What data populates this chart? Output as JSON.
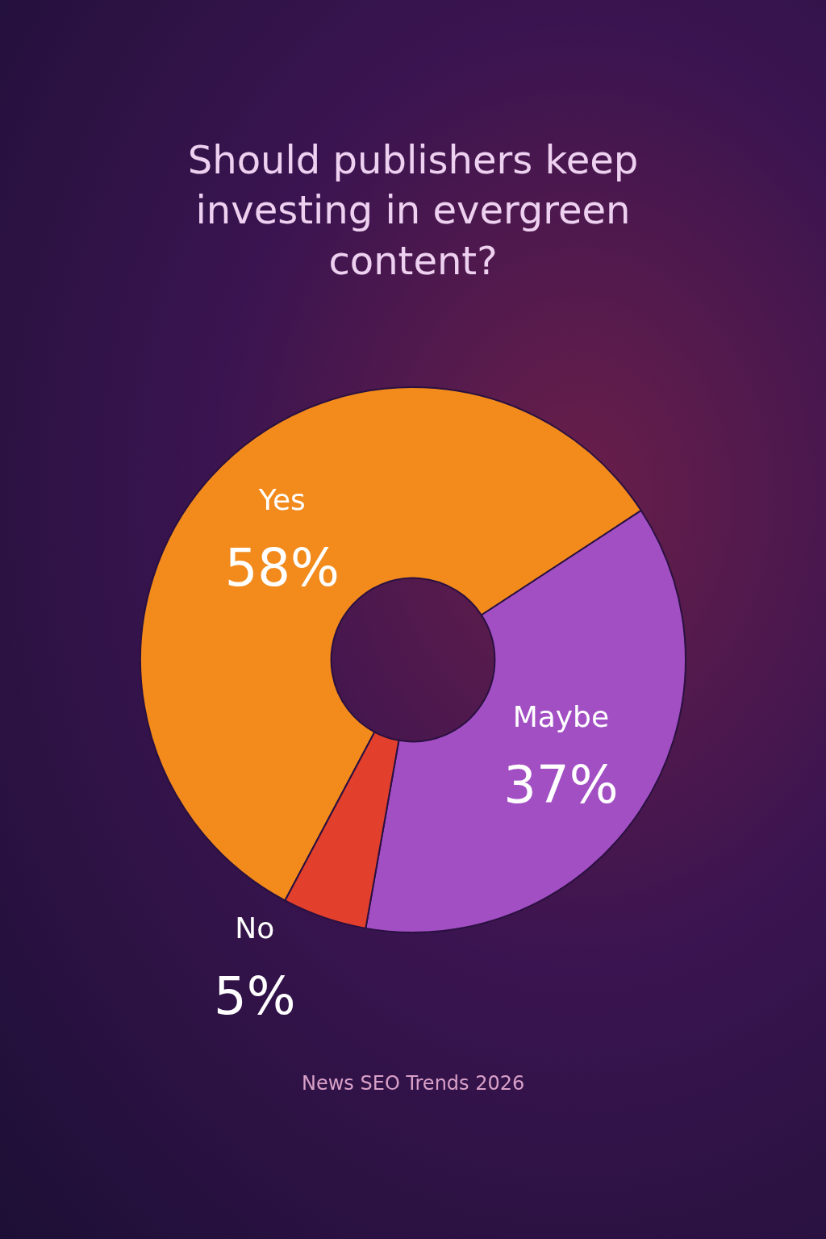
{
  "chart_data": {
    "type": "donut",
    "title": "Should publishers keep investing in evergreen content?",
    "categories": [
      "Yes",
      "Maybe",
      "No"
    ],
    "values": [
      58,
      37,
      5
    ],
    "value_labels": [
      "58%",
      "37%",
      "5%"
    ],
    "colors": [
      "#f28a1c",
      "#a24fc4",
      "#e2402c"
    ],
    "annotations": [
      "News SEO Trends 2026"
    ]
  }
}
